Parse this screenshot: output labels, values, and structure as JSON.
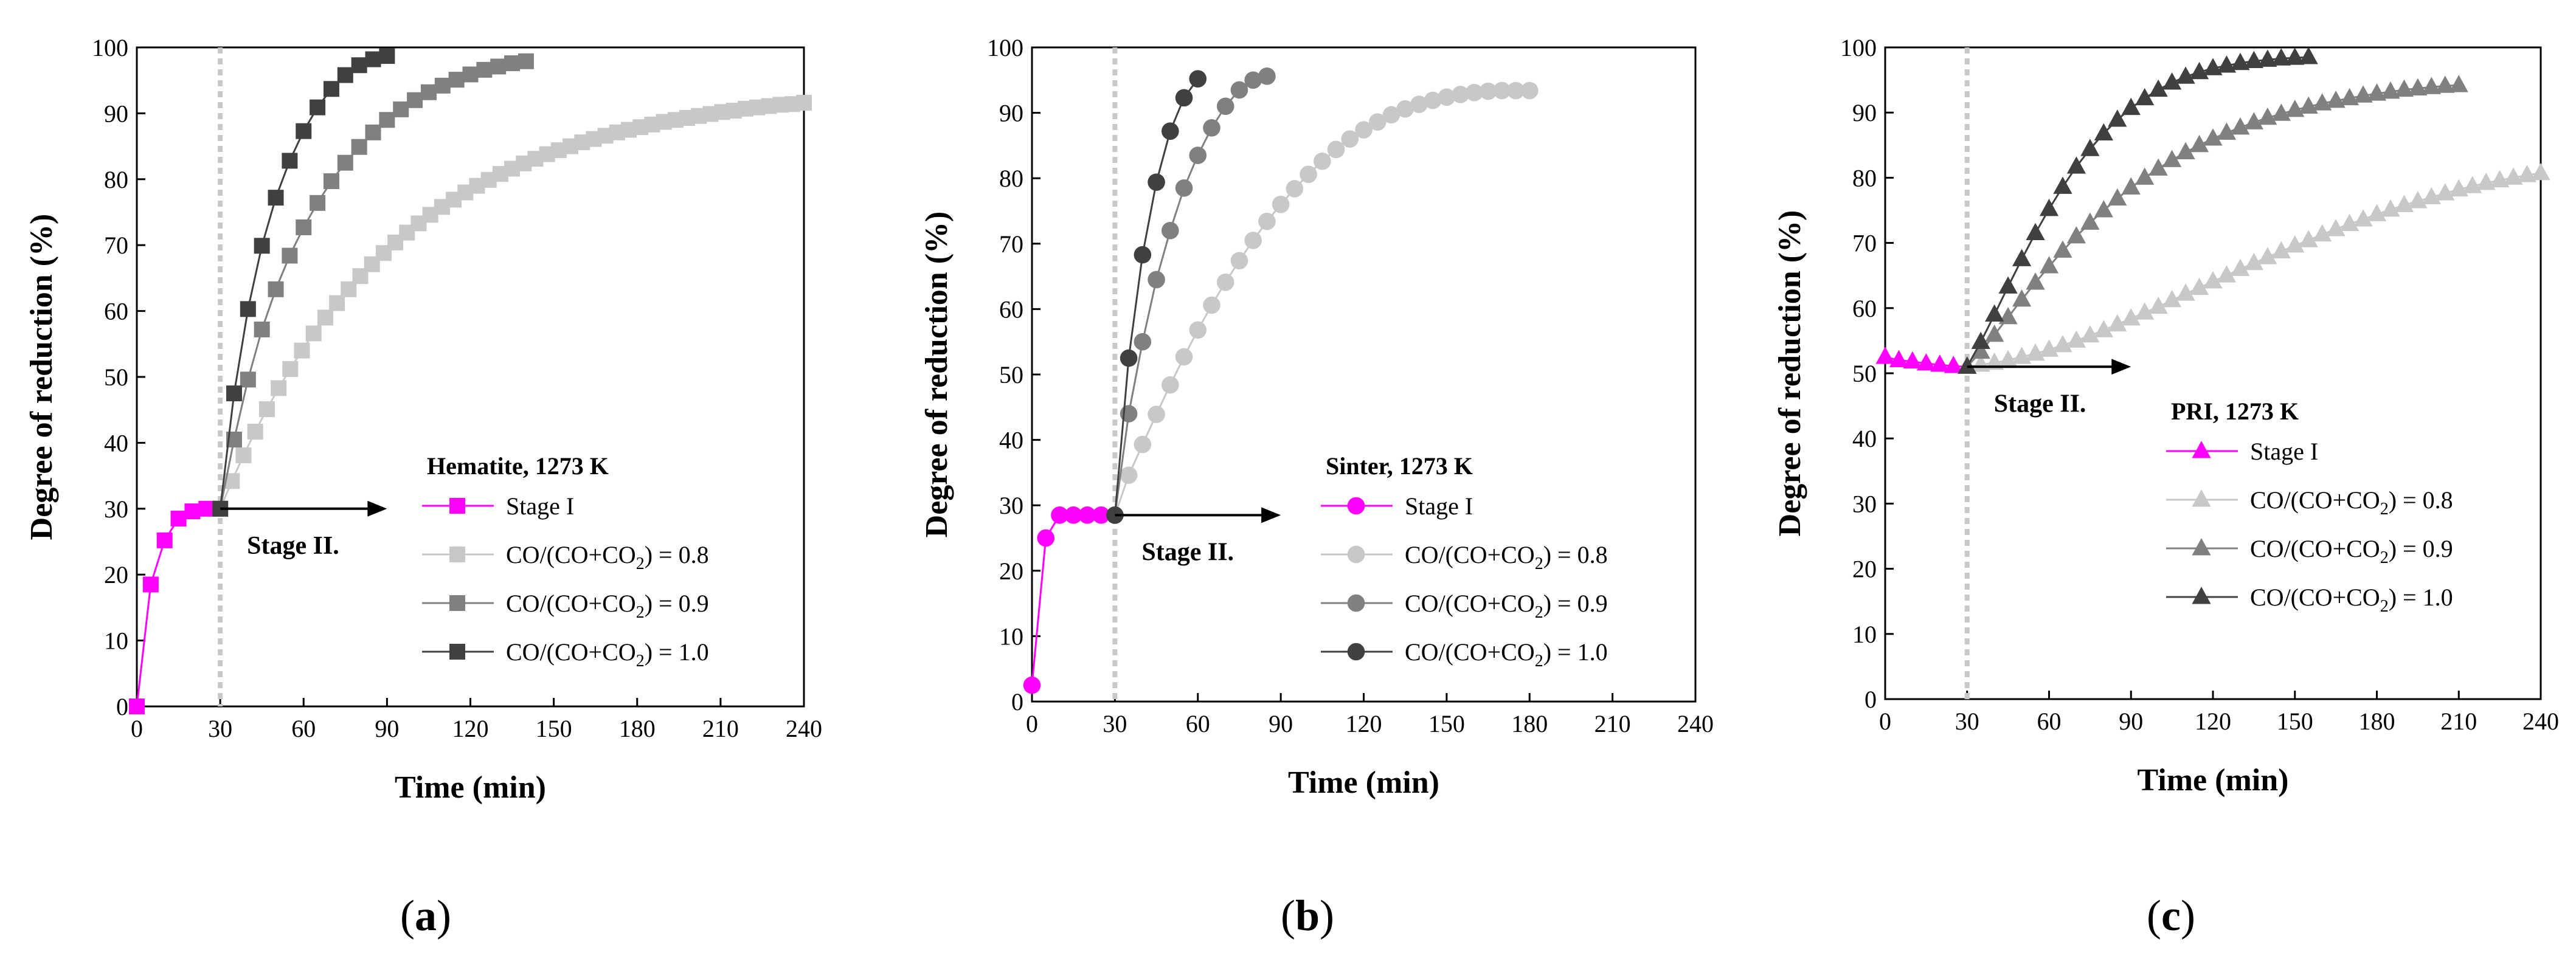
{
  "charts": [
    {
      "panel": "a",
      "caption_open": "(",
      "caption_letter": "a",
      "caption_close": ")",
      "type": "line",
      "legend_title": "Hematite, 1273 K",
      "stage_label": "Stage II.",
      "marker": "square",
      "xlabel": "Time (min)",
      "ylabel": "Degree of reduction (%)",
      "xlim": [
        0,
        240
      ],
      "ylim": [
        0,
        100
      ],
      "xticks": [
        0,
        30,
        60,
        90,
        120,
        150,
        180,
        210,
        240
      ],
      "yticks": [
        0,
        10,
        20,
        30,
        40,
        50,
        60,
        70,
        80,
        90,
        100
      ],
      "stage_split": 30,
      "arrow": {
        "x0": 30,
        "x1": 90,
        "y": 30
      },
      "series": [
        {
          "name": "Stage I",
          "color": "#ff00ff",
          "x": [
            0,
            5,
            10,
            15,
            20,
            25,
            30
          ],
          "y": [
            0,
            18.5,
            25.2,
            28.5,
            29.6,
            30,
            30
          ]
        },
        {
          "name": "CO/(CO+CO2) = 0.8",
          "color": "#c8c8c8",
          "x": [
            30,
            34.2,
            38.4,
            42.6,
            46.8,
            51,
            55.2,
            59.4,
            63.6,
            67.8,
            72,
            76.2,
            80.4,
            84.6,
            88.8,
            93,
            97.2,
            101.4,
            105.6,
            109.8,
            114,
            118.2,
            122.4,
            126.6,
            130.8,
            135,
            139.2,
            143.4,
            147.6,
            151.8,
            156,
            160.2,
            164.4,
            168.6,
            172.8,
            177,
            181.2,
            185.4,
            189.6,
            193.8,
            198,
            202.2,
            206.4,
            210.6,
            214.8,
            219,
            223.2,
            227.4,
            231.6,
            235.8,
            240
          ],
          "y": [
            30,
            34.2,
            38.1,
            41.7,
            45.1,
            48.3,
            51.2,
            54,
            56.6,
            59,
            61.2,
            63.3,
            65.3,
            67.1,
            68.8,
            70.4,
            71.9,
            73.3,
            74.6,
            75.8,
            76.9,
            78,
            79,
            79.9,
            80.8,
            81.6,
            82.4,
            83.1,
            83.8,
            84.4,
            85,
            85.6,
            86.1,
            86.6,
            87.1,
            87.5,
            87.9,
            88.3,
            88.7,
            89,
            89.3,
            89.6,
            89.9,
            90.2,
            90.4,
            90.7,
            90.9,
            91.1,
            91.3,
            91.4,
            91.6
          ]
        },
        {
          "name": "CO/(CO+CO2) = 0.9",
          "color": "#808080",
          "x": [
            30,
            35,
            40,
            45,
            50,
            55,
            60,
            65,
            70,
            75,
            80,
            85,
            90,
            95,
            100,
            105,
            110,
            115,
            120,
            125,
            130,
            135,
            140
          ],
          "y": [
            30,
            40.5,
            49.6,
            57.2,
            63.3,
            68.4,
            72.7,
            76.4,
            79.7,
            82.5,
            84.9,
            87.1,
            89,
            90.6,
            92,
            93.2,
            94.2,
            95.1,
            95.9,
            96.6,
            97.1,
            97.6,
            97.9
          ]
        },
        {
          "name": "CO/(CO+CO2) = 1.0",
          "color": "#404040",
          "x": [
            30,
            35,
            40,
            45,
            50,
            55,
            60,
            65,
            70,
            75,
            80,
            85,
            90
          ],
          "y": [
            30,
            47.5,
            60.3,
            69.9,
            77.2,
            82.8,
            87.3,
            90.9,
            93.7,
            95.8,
            97.3,
            98.2,
            98.7
          ]
        }
      ]
    },
    {
      "panel": "b",
      "caption_open": "(",
      "caption_letter": "b",
      "caption_close": ")",
      "type": "line",
      "legend_title": "Sinter, 1273 K",
      "stage_label": "Stage II.",
      "marker": "circle",
      "xlabel": "Time (min)",
      "ylabel": "Degree of reduction (%)",
      "xlim": [
        0,
        240
      ],
      "ylim": [
        0,
        100
      ],
      "xticks": [
        0,
        30,
        60,
        90,
        120,
        150,
        180,
        210,
        240
      ],
      "yticks": [
        0,
        10,
        20,
        30,
        40,
        50,
        60,
        70,
        80,
        90,
        100
      ],
      "stage_split": 30,
      "arrow": {
        "x0": 30,
        "x1": 90,
        "y": 28.5
      },
      "series": [
        {
          "name": "Stage I",
          "color": "#ff00ff",
          "x": [
            0,
            5,
            10,
            15,
            20,
            25,
            30
          ],
          "y": [
            2.5,
            25,
            28.5,
            28.5,
            28.5,
            28.5,
            28.5
          ]
        },
        {
          "name": "CO/(CO+CO2) = 0.8",
          "color": "#c8c8c8",
          "x": [
            30,
            35,
            40,
            45,
            50,
            55,
            60,
            65,
            70,
            75,
            80,
            85,
            90,
            95,
            100,
            105,
            110,
            115,
            120,
            125,
            130,
            135,
            140,
            145,
            150,
            155,
            160,
            165,
            170,
            175,
            180
          ],
          "y": [
            28.5,
            34.6,
            39.3,
            43.9,
            48.4,
            52.7,
            56.8,
            60.6,
            64.1,
            67.4,
            70.5,
            73.4,
            76,
            78.4,
            80.6,
            82.6,
            84.4,
            86,
            87.4,
            88.6,
            89.7,
            90.6,
            91.3,
            91.9,
            92.4,
            92.8,
            93.1,
            93.3,
            93.4,
            93.4,
            93.4
          ]
        },
        {
          "name": "CO/(CO+CO2) = 0.9",
          "color": "#808080",
          "x": [
            30,
            35,
            40,
            45,
            50,
            55,
            60,
            65,
            70,
            75,
            80,
            85
          ],
          "y": [
            28.5,
            44,
            55,
            64.5,
            72,
            78.5,
            83.5,
            87.7,
            91,
            93.5,
            95,
            95.6
          ]
        },
        {
          "name": "CO/(CO+CO2) = 1.0",
          "color": "#404040",
          "x": [
            30,
            35,
            40,
            45,
            50,
            55,
            60
          ],
          "y": [
            28.5,
            52.5,
            68.3,
            79.4,
            87.2,
            92.3,
            95.2
          ]
        }
      ]
    },
    {
      "panel": "c",
      "caption_open": "(",
      "caption_letter": "c",
      "caption_close": ")",
      "type": "line",
      "legend_title": "PRI, 1273 K",
      "stage_label": "Stage II.",
      "marker": "triangle",
      "xlabel": "Time (min)",
      "ylabel": "Degree of reduction (%)",
      "xlim": [
        0,
        240
      ],
      "ylim": [
        0,
        100
      ],
      "xticks": [
        0,
        30,
        60,
        90,
        120,
        150,
        180,
        210,
        240
      ],
      "yticks": [
        0,
        10,
        20,
        30,
        40,
        50,
        60,
        70,
        80,
        90,
        100
      ],
      "stage_split": 30,
      "arrow": {
        "x0": 30,
        "x1": 90,
        "y": 51
      },
      "series": [
        {
          "name": "Stage I",
          "color": "#ff00ff",
          "x": [
            0,
            5,
            10,
            15,
            20,
            25,
            30
          ],
          "y": [
            52.5,
            52,
            51.8,
            51.5,
            51.3,
            51.1,
            51
          ]
        },
        {
          "name": "CO/(CO+CO2) = 0.8",
          "color": "#c8c8c8",
          "x": [
            30,
            35,
            40,
            45,
            50,
            55,
            60,
            65,
            70,
            75,
            80,
            85,
            90,
            95,
            100,
            105,
            110,
            115,
            120,
            125,
            130,
            135,
            140,
            145,
            150,
            155,
            160,
            165,
            170,
            175,
            180,
            185,
            190,
            195,
            200,
            205,
            210,
            215,
            220,
            225,
            230,
            235,
            240
          ],
          "y": [
            51,
            51.3,
            51.6,
            52,
            52.5,
            53,
            53.6,
            54.3,
            55,
            55.8,
            56.6,
            57.5,
            58.4,
            59.3,
            60.2,
            61.2,
            62.2,
            63.1,
            64.1,
            65,
            66,
            66.9,
            67.8,
            68.7,
            69.6,
            70.4,
            71.3,
            72.1,
            72.9,
            73.6,
            74.4,
            75.1,
            75.8,
            76.4,
            77,
            77.6,
            78.2,
            78.7,
            79.2,
            79.6,
            80,
            80.4,
            80.7
          ]
        },
        {
          "name": "CO/(CO+CO2) = 0.9",
          "color": "#808080",
          "x": [
            30,
            35,
            40,
            45,
            50,
            55,
            60,
            65,
            70,
            75,
            80,
            85,
            90,
            95,
            100,
            105,
            110,
            115,
            120,
            125,
            130,
            135,
            140,
            145,
            150,
            155,
            160,
            165,
            170,
            175,
            180,
            185,
            190,
            195,
            200,
            205,
            210
          ],
          "y": [
            51,
            53.3,
            55.9,
            58.6,
            61.3,
            63.9,
            66.4,
            68.8,
            71,
            73.1,
            75,
            76.8,
            78.5,
            80,
            81.4,
            82.7,
            83.9,
            85,
            86,
            86.9,
            87.7,
            88.5,
            89.2,
            89.8,
            90.4,
            90.9,
            91.4,
            91.8,
            92.2,
            92.6,
            92.9,
            93.2,
            93.5,
            93.7,
            93.9,
            94.1,
            94.2
          ]
        },
        {
          "name": "CO/(CO+CO2) = 1.0",
          "color": "#404040",
          "x": [
            30,
            35,
            40,
            45,
            50,
            55,
            60,
            65,
            70,
            75,
            80,
            85,
            90,
            95,
            100,
            105,
            110,
            115,
            120,
            125,
            130,
            135,
            140,
            145,
            150,
            155
          ],
          "y": [
            51,
            54.8,
            59,
            63.3,
            67.5,
            71.5,
            75.2,
            78.6,
            81.7,
            84.4,
            86.8,
            88.9,
            90.7,
            92.2,
            93.5,
            94.6,
            95.5,
            96.2,
            96.8,
            97.2,
            97.6,
            97.9,
            98.1,
            98.3,
            98.4,
            98.5
          ]
        }
      ]
    }
  ],
  "chart_data": [
    {
      "type": "line",
      "title": "Hematite, 1273 K",
      "xlabel": "Time (min)",
      "ylabel": "Degree of reduction (%)",
      "xlim": [
        0,
        240
      ],
      "ylim": [
        0,
        100
      ],
      "series": [
        {
          "name": "Stage I",
          "x": [
            0,
            5,
            10,
            15,
            20,
            25,
            30
          ],
          "y": [
            0,
            18.5,
            25.2,
            28.5,
            29.6,
            30,
            30
          ]
        },
        {
          "name": "CO/(CO+CO2) = 0.8",
          "x_range": [
            30,
            240
          ],
          "y_range": [
            30,
            91.6
          ]
        },
        {
          "name": "CO/(CO+CO2) = 0.9",
          "x_range": [
            30,
            140
          ],
          "y_range": [
            30,
            97.9
          ]
        },
        {
          "name": "CO/(CO+CO2) = 1.0",
          "x_range": [
            30,
            90
          ],
          "y_range": [
            30,
            98.7
          ]
        }
      ]
    },
    {
      "type": "line",
      "title": "Sinter, 1273 K",
      "xlabel": "Time (min)",
      "ylabel": "Degree of reduction (%)",
      "xlim": [
        0,
        240
      ],
      "ylim": [
        0,
        100
      ],
      "series": [
        {
          "name": "Stage I",
          "x": [
            0,
            5,
            10,
            15,
            20,
            25,
            30
          ],
          "y": [
            2.5,
            25,
            28.5,
            28.5,
            28.5,
            28.5,
            28.5
          ]
        },
        {
          "name": "CO/(CO+CO2) = 0.8",
          "x_range": [
            30,
            180
          ],
          "y_range": [
            28.5,
            93.4
          ]
        },
        {
          "name": "CO/(CO+CO2) = 0.9",
          "x_range": [
            30,
            85
          ],
          "y_range": [
            28.5,
            95.6
          ]
        },
        {
          "name": "CO/(CO+CO2) = 1.0",
          "x_range": [
            30,
            60
          ],
          "y_range": [
            28.5,
            95.2
          ]
        }
      ]
    },
    {
      "type": "line",
      "title": "PRI, 1273 K",
      "xlabel": "Time (min)",
      "ylabel": "Degree of reduction (%)",
      "xlim": [
        0,
        240
      ],
      "ylim": [
        0,
        100
      ],
      "series": [
        {
          "name": "Stage I",
          "x": [
            0,
            5,
            10,
            15,
            20,
            25,
            30
          ],
          "y": [
            52.5,
            52,
            51.8,
            51.5,
            51.3,
            51.1,
            51
          ]
        },
        {
          "name": "CO/(CO+CO2) = 0.8",
          "x_range": [
            30,
            240
          ],
          "y_range": [
            51,
            80.7
          ]
        },
        {
          "name": "CO/(CO+CO2) = 0.9",
          "x_range": [
            30,
            210
          ],
          "y_range": [
            51,
            94.2
          ]
        },
        {
          "name": "CO/(CO+CO2) = 1.0",
          "x_range": [
            30,
            155
          ],
          "y_range": [
            51,
            98.5
          ]
        }
      ]
    }
  ]
}
